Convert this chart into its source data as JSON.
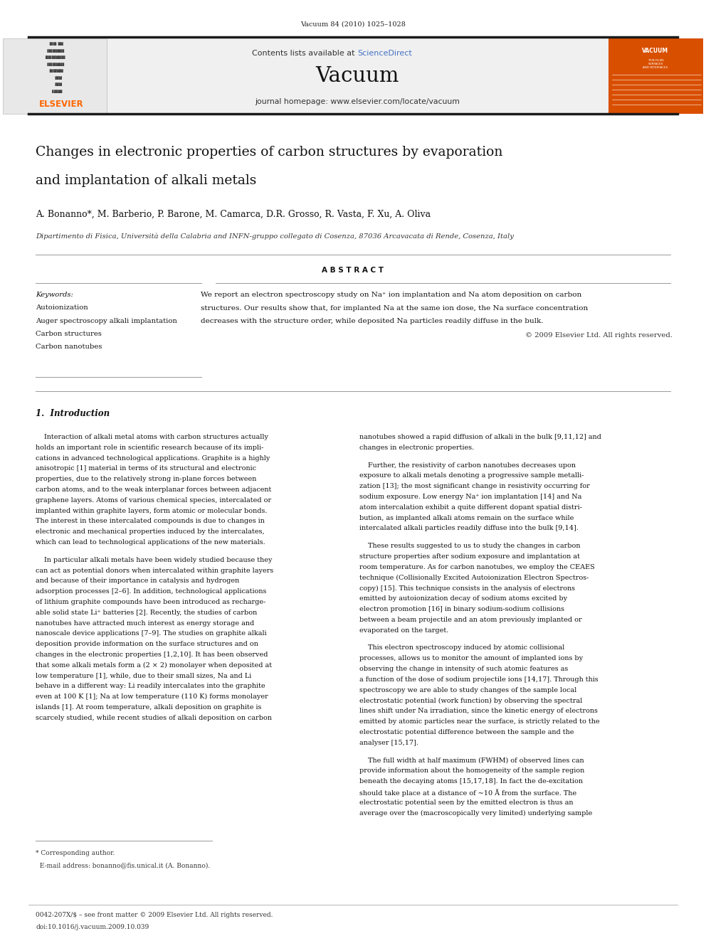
{
  "page_width": 9.92,
  "page_height": 13.23,
  "bg_color": "#ffffff",
  "journal_ref": "Vacuum 84 (2010) 1025–1028",
  "header_bg": "#f0f0f0",
  "elsevier_color": "#ff6600",
  "sciencedirect_color": "#4472c4",
  "journal_name": "Vacuum",
  "journal_homepage": "journal homepage: www.elsevier.com/locate/vacuum",
  "title_line1": "Changes in electronic properties of carbon structures by evaporation",
  "title_line2": "and implantation of alkali metals",
  "authors": "A. Bonanno*, M. Barberio, P. Barone, M. Camarca, D.R. Grosso, R. Vasta, F. Xu, A. Oliva",
  "affiliation": "Dipartimento di Fisica, Università della Calabria and INFN-gruppo collegato di Cosenza, 87036 Arcavacata di Rende, Cosenza, Italy",
  "abstract_title": "A B S T R A C T",
  "keywords_label": "Keywords:",
  "keywords": [
    "Autoionization",
    "Auger spectroscopy alkali implantation",
    "Carbon structures",
    "Carbon nanotubes"
  ],
  "abstract_line1": "We report an electron spectroscopy study on Na⁺ ion implantation and Na atom deposition on carbon",
  "abstract_line2": "structures. Our results show that, for implanted Na at the same ion dose, the Na surface concentration",
  "abstract_line3": "decreases with the structure order, while deposited Na particles readily diffuse in the bulk.",
  "abstract_copyright": "© 2009 Elsevier Ltd. All rights reserved.",
  "section1_title": "1.  Introduction",
  "intro_col1_p1": [
    "    Interaction of alkali metal atoms with carbon structures actually",
    "holds an important role in scientific research because of its impli-",
    "cations in advanced technological applications. Graphite is a highly",
    "anisotropic [1] material in terms of its structural and electronic",
    "properties, due to the relatively strong in-plane forces between",
    "carbon atoms, and to the weak interplanar forces between adjacent",
    "graphene layers. Atoms of various chemical species, intercalated or",
    "implanted within graphite layers, form atomic or molecular bonds.",
    "The interest in these intercalated compounds is due to changes in",
    "electronic and mechanical properties induced by the intercalates,",
    "which can lead to technological applications of the new materials."
  ],
  "intro_col1_p2": [
    "    In particular alkali metals have been widely studied because they",
    "can act as potential donors when intercalated within graphite layers",
    "and because of their importance in catalysis and hydrogen",
    "adsorption processes [2–6]. In addition, technological applications",
    "of lithium graphite compounds have been introduced as recharge-",
    "able solid state Li⁺ batteries [2]. Recently, the studies of carbon",
    "nanotubes have attracted much interest as energy storage and",
    "nanoscale device applications [7–9]. The studies on graphite alkali",
    "deposition provide information on the surface structures and on",
    "changes in the electronic properties [1,2,10]. It has been observed",
    "that some alkali metals form a (2 × 2) monolayer when deposited at",
    "low temperature [1], while, due to their small sizes, Na and Li",
    "behave in a different way: Li readily intercalates into the graphite",
    "even at 100 K [1]; Na at low temperature (110 K) forms monolayer",
    "islands [1]. At room temperature, alkali deposition on graphite is",
    "scarcely studied, while recent studies of alkali deposition on carbon"
  ],
  "intro_col2_p1": [
    "nanotubes showed a rapid diffusion of alkali in the bulk [9,11,12] and",
    "changes in electronic properties."
  ],
  "intro_col2_p2": [
    "    Further, the resistivity of carbon nanotubes decreases upon",
    "exposure to alkali metals denoting a progressive sample metalli-",
    "zation [13]; the most significant change in resistivity occurring for",
    "sodium exposure. Low energy Na⁺ ion implantation [14] and Na",
    "atom intercalation exhibit a quite different dopant spatial distri-",
    "bution, as implanted alkali atoms remain on the surface while",
    "intercalated alkali particles readily diffuse into the bulk [9,14]."
  ],
  "intro_col2_p3": [
    "    These results suggested to us to study the changes in carbon",
    "structure properties after sodium exposure and implantation at",
    "room temperature. As for carbon nanotubes, we employ the CEAES",
    "technique (Collisionally Excited Autoionization Electron Spectros-",
    "copy) [15]. This technique consists in the analysis of electrons",
    "emitted by autoionization decay of sodium atoms excited by",
    "electron promotion [16] in binary sodium-sodium collisions",
    "between a beam projectile and an atom previously implanted or",
    "evaporated on the target."
  ],
  "intro_col2_p4": [
    "    This electron spectroscopy induced by atomic collisional",
    "processes, allows us to monitor the amount of implanted ions by",
    "observing the change in intensity of such atomic features as",
    "a function of the dose of sodium projectile ions [14,17]. Through this",
    "spectroscopy we are able to study changes of the sample local",
    "electrostatic potential (work function) by observing the spectral",
    "lines shift under Na irradiation, since the kinetic energy of electrons",
    "emitted by atomic particles near the surface, is strictly related to the",
    "electrostatic potential difference between the sample and the",
    "analyser [15,17]."
  ],
  "intro_col2_p5": [
    "    The full width at half maximum (FWHM) of observed lines can",
    "provide information about the homogeneity of the sample region",
    "beneath the decaying atoms [15,17,18]. In fact the de-excitation",
    "should take place at a distance of ~10 Å from the surface. The",
    "electrostatic potential seen by the emitted electron is thus an",
    "average over the (macroscopically very limited) underlying sample"
  ],
  "footnote_line1": "* Corresponding author.",
  "footnote_line2": "  E-mail address: bonanno@fis.unical.it (A. Bonanno).",
  "bottom_line1": "0042-207X/$ – see front matter © 2009 Elsevier Ltd. All rights reserved.",
  "bottom_line2": "doi:10.1016/j.vacuum.2009.10.039",
  "top_border_color": "#1a1a1a"
}
